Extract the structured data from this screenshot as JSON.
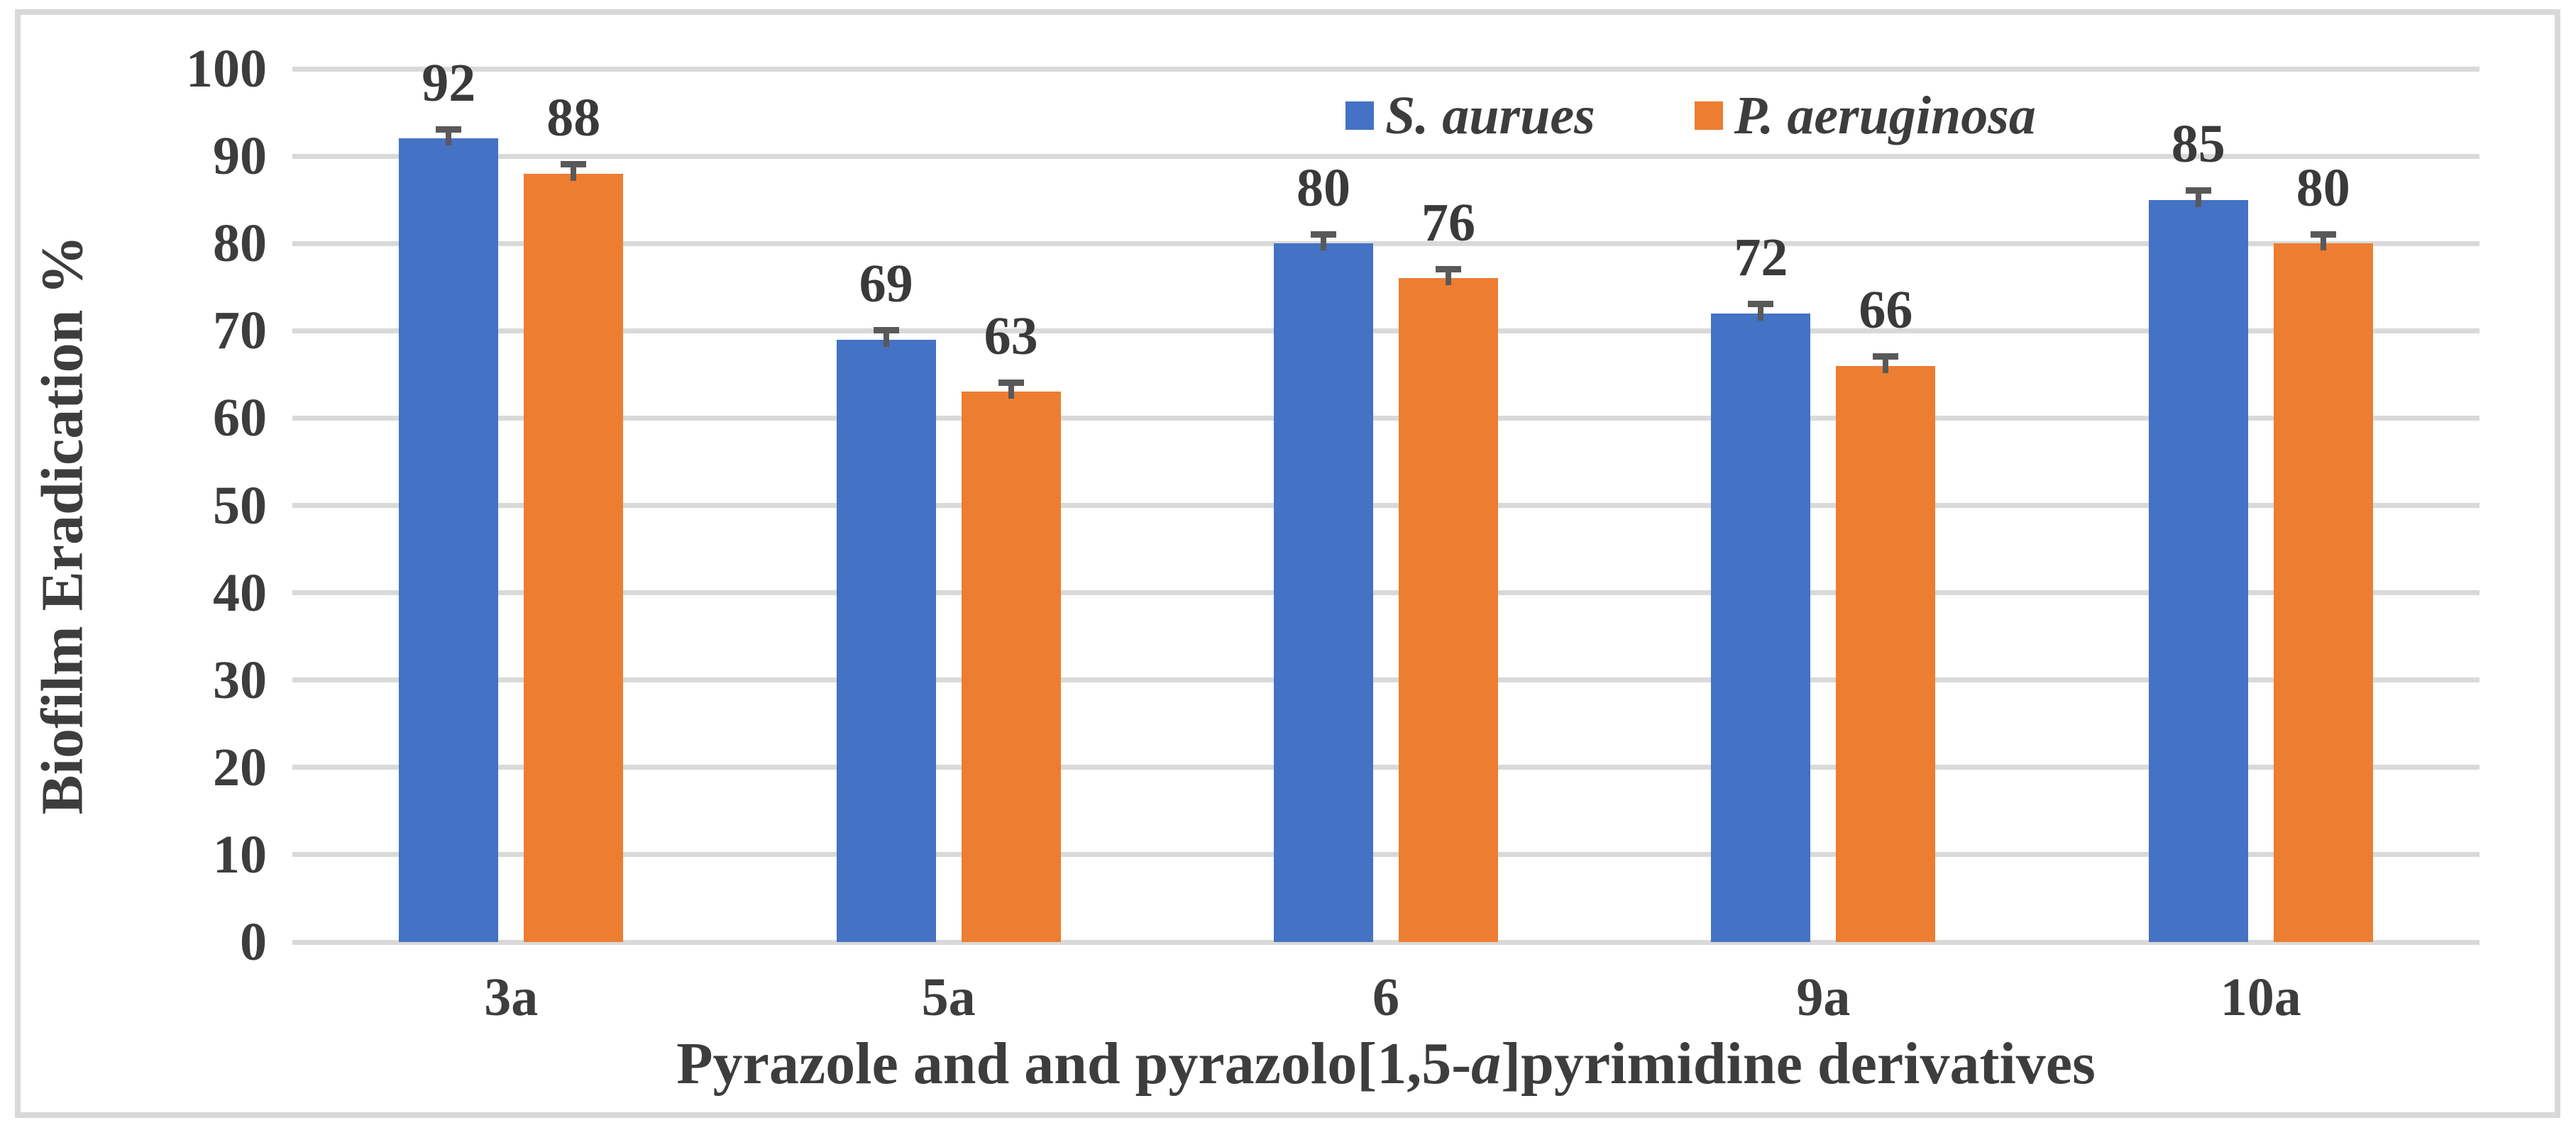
{
  "figure": {
    "background": "#FFFFFF",
    "border_color": "#D9D9D9",
    "text_color": "#3D3D3D"
  },
  "chart_data": {
    "type": "bar",
    "title": "",
    "categories": [
      "3a",
      "5a",
      "6",
      "9a",
      "10a"
    ],
    "series": [
      {
        "name": "S. aurues",
        "color": "#4472C4",
        "values": [
          92,
          69,
          80,
          72,
          85
        ]
      },
      {
        "name": "P. aeruginosa",
        "color": "#ED7D31",
        "values": [
          88,
          63,
          76,
          66,
          80
        ]
      }
    ],
    "data_labels": [
      [
        92,
        69,
        80,
        72,
        85
      ],
      [
        88,
        63,
        76,
        66,
        80
      ]
    ],
    "error_bars": {
      "direction": "plus",
      "amount": 1.5,
      "color": "#595959"
    },
    "xlabel_parts": {
      "before": "Pyrazole and and pyrazolo[1,5-",
      "italic": "a",
      "after": "]pyrimidine derivatives"
    },
    "xlabel": "Pyrazole and and pyrazolo[1,5-a]pyrimidine derivatives",
    "ylabel": "Biofilm Eradication %",
    "ylim": [
      0,
      100
    ],
    "yticks": [
      0,
      10,
      20,
      30,
      40,
      50,
      60,
      70,
      80,
      90,
      100
    ],
    "grid": "horizontal",
    "gridline_color": "#D9D9D9",
    "legend": {
      "position": "top-inside",
      "items": [
        "S. aurues",
        "P. aeruginosa"
      ]
    }
  }
}
